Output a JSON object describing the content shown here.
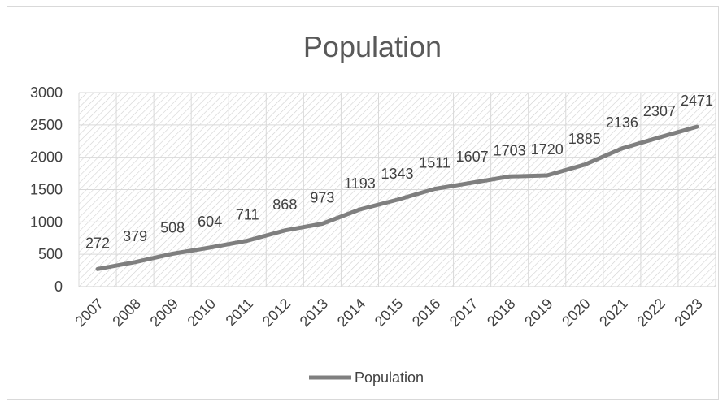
{
  "chart_data": {
    "type": "line",
    "title": "Population",
    "xlabel": "",
    "ylabel": "",
    "categories": [
      "2007",
      "2008",
      "2009",
      "2010",
      "2011",
      "2012",
      "2013",
      "2014",
      "2015",
      "2016",
      "2017",
      "2018",
      "2019",
      "2020",
      "2021",
      "2022",
      "2023"
    ],
    "series": [
      {
        "name": "Population",
        "color": "#7f7f7f",
        "values": [
          272,
          379,
          508,
          604,
          711,
          868,
          973,
          1193,
          1343,
          1511,
          1607,
          1703,
          1720,
          1885,
          2136,
          2307,
          2471
        ]
      }
    ],
    "ylim": [
      0,
      3000
    ],
    "yticks": [
      "0",
      "500",
      "1000",
      "1500",
      "2000",
      "2500",
      "3000"
    ],
    "grid": true,
    "plot_fill": "hatched",
    "data_labels": true,
    "legend": "bottom"
  }
}
